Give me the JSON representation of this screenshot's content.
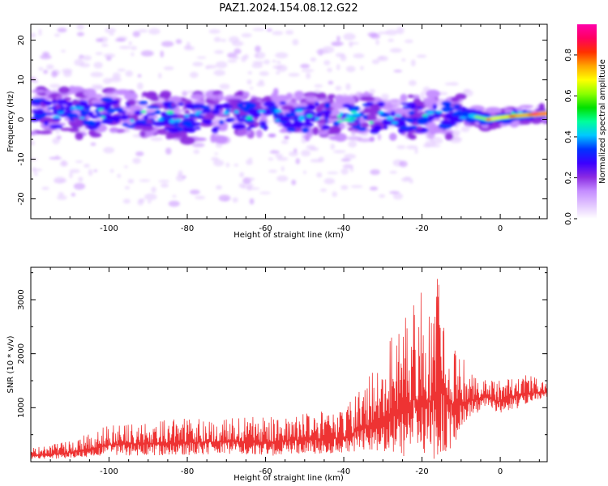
{
  "title": "PAZ1.2024.154.08.12.G22",
  "chart_data": [
    {
      "type": "heatmap",
      "xlabel": "Height of straight line (km)",
      "ylabel": "Frequency (Hz)",
      "xlim": [
        -120,
        12
      ],
      "ylim": [
        -25,
        24
      ],
      "xticks": [
        -100,
        -80,
        -60,
        -40,
        -20,
        0
      ],
      "yticks": [
        -20,
        -10,
        0,
        10,
        20
      ],
      "colorbar": {
        "label": "Normalized spectral amplitude",
        "range": [
          0.0,
          0.95
        ],
        "ticks": [
          "0.0",
          "0.2",
          "0.4",
          "0.6",
          "0.8"
        ],
        "colors": [
          "#ffffff",
          "#e2c6ff",
          "#c48cff",
          "#8a2be2",
          "#3b00ff",
          "#0033ff",
          "#00c8ff",
          "#00ff9a",
          "#00e000",
          "#8cff00",
          "#ffff00",
          "#ffa500",
          "#ff3000",
          "#ff0060",
          "#ff00aa"
        ]
      },
      "ridge": [
        {
          "x": -120,
          "y": 1.5
        },
        {
          "x": -100,
          "y": 1.5
        },
        {
          "x": -80,
          "y": 0.5
        },
        {
          "x": -60,
          "y": 1.0
        },
        {
          "x": -40,
          "y": 0.5
        },
        {
          "x": -20,
          "y": 0.5
        },
        {
          "x": -10,
          "y": 1.5
        },
        {
          "x": -3,
          "y": 0.0
        },
        {
          "x": 0,
          "y": 0.5
        },
        {
          "x": 5,
          "y": 1.0
        },
        {
          "x": 12,
          "y": 1.5
        }
      ]
    },
    {
      "type": "line",
      "xlabel": "Height of straight line (km)",
      "ylabel": "SNR (10 * v/v)",
      "xlim": [
        -120,
        12
      ],
      "ylim": [
        0,
        3600
      ],
      "xticks": [
        -100,
        -80,
        -60,
        -40,
        -20,
        0
      ],
      "yticks": [
        1000,
        2000,
        3000
      ],
      "series": [
        {
          "color": "#ee3333",
          "envelope": [
            {
              "x": -120,
              "lo": 50,
              "hi": 250
            },
            {
              "x": -110,
              "lo": 60,
              "hi": 380
            },
            {
              "x": -100,
              "lo": 100,
              "hi": 700
            },
            {
              "x": -90,
              "lo": 120,
              "hi": 750
            },
            {
              "x": -80,
              "lo": 120,
              "hi": 800
            },
            {
              "x": -70,
              "lo": 150,
              "hi": 800
            },
            {
              "x": -60,
              "lo": 100,
              "hi": 850
            },
            {
              "x": -50,
              "lo": 150,
              "hi": 900
            },
            {
              "x": -40,
              "lo": 150,
              "hi": 1000
            },
            {
              "x": -35,
              "lo": 200,
              "hi": 1400
            },
            {
              "x": -30,
              "lo": 200,
              "hi": 2000
            },
            {
              "x": -27,
              "lo": 100,
              "hi": 2500
            },
            {
              "x": -22,
              "lo": 100,
              "hi": 3100
            },
            {
              "x": -18,
              "lo": 0,
              "hi": 3200
            },
            {
              "x": -15,
              "lo": 100,
              "hi": 3500
            },
            {
              "x": -12,
              "lo": 300,
              "hi": 2500
            },
            {
              "x": -8,
              "lo": 800,
              "hi": 1700
            },
            {
              "x": -4,
              "lo": 1000,
              "hi": 1600
            },
            {
              "x": 0,
              "lo": 900,
              "hi": 1500
            },
            {
              "x": 5,
              "lo": 1000,
              "hi": 1700
            },
            {
              "x": 8,
              "lo": 1100,
              "hi": 1600
            },
            {
              "x": 12,
              "lo": 1200,
              "hi": 1450
            }
          ]
        }
      ]
    }
  ]
}
